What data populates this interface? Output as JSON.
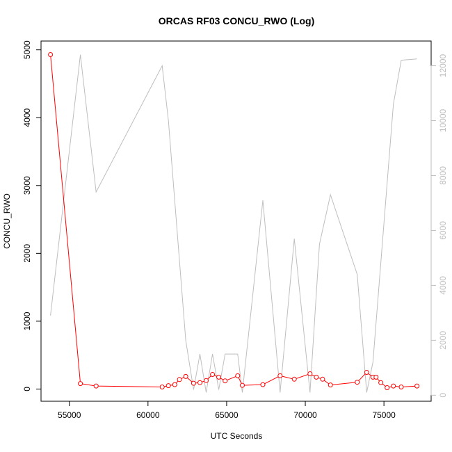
{
  "chart_data": {
    "type": "line",
    "title": "ORCAS RF03 CONCU_RWO (Log)",
    "xlabel": "UTC Seconds",
    "ylabel": "CONCU_RWO",
    "xlim": [
      53200,
      78000
    ],
    "ylim": [
      -180,
      5130
    ],
    "y2lim": [
      -220,
      12900
    ],
    "x_ticks": [
      55000,
      60000,
      65000,
      70000,
      75000
    ],
    "y_ticks": [
      0,
      1000,
      2000,
      3000,
      4000,
      5000
    ],
    "y2_ticks": [
      0,
      2000,
      4000,
      6000,
      8000,
      10000,
      12000
    ],
    "grid": false,
    "colors": {
      "primary": "#ff0000",
      "secondary": "#bebebe"
    },
    "series": [
      {
        "axis": "left",
        "style": "line+points",
        "color": "#ff0000",
        "x": [
          53800,
          55700,
          56700,
          60900,
          61300,
          61700,
          62000,
          62400,
          62900,
          63300,
          63700,
          64100,
          64500,
          64900,
          65700,
          66000,
          67300,
          68400,
          69300,
          70300,
          70700,
          71100,
          71600,
          73300,
          73900,
          74300,
          74500,
          74800,
          75200,
          75600,
          76100,
          77100
        ],
        "values": [
          4930,
          80,
          45,
          30,
          50,
          65,
          140,
          185,
          85,
          95,
          125,
          215,
          175,
          120,
          195,
          55,
          65,
          195,
          145,
          225,
          175,
          145,
          60,
          100,
          245,
          175,
          175,
          95,
          20,
          45,
          30,
          45
        ]
      },
      {
        "axis": "right",
        "style": "line",
        "color": "#bebebe",
        "x": [
          53800,
          55700,
          56700,
          60900,
          61300,
          62400,
          62900,
          63300,
          63700,
          64100,
          64500,
          64900,
          65700,
          66000,
          67300,
          68400,
          69300,
          70300,
          70900,
          71600,
          73300,
          73900,
          74300,
          75600,
          76100,
          77100
        ],
        "values": [
          2900,
          12400,
          7400,
          12000,
          10000,
          2000,
          200,
          1500,
          100,
          1500,
          200,
          1500,
          1500,
          100,
          7100,
          100,
          5700,
          100,
          5500,
          7300,
          4400,
          100,
          1200,
          10600,
          12200,
          12250
        ]
      }
    ]
  }
}
